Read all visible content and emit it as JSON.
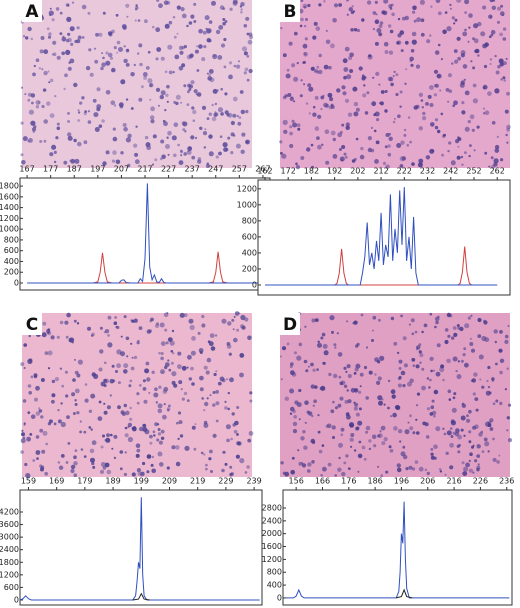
{
  "chart_data": [
    {
      "type": "line",
      "panel": "A",
      "xlim": [
        164,
        270
      ],
      "ylim": [
        -130,
        1950
      ],
      "xticks": [
        167,
        177,
        187,
        197,
        207,
        217,
        227,
        237,
        247,
        257,
        267
      ],
      "yticks": [
        0,
        200,
        400,
        600,
        800,
        1000,
        1200,
        1400,
        1600,
        1800
      ],
      "series": [
        {
          "color": "#d04040",
          "x": [
            195,
            197,
            198,
            199,
            200,
            201,
            203,
            244,
            246,
            247,
            248,
            249,
            250,
            252
          ],
          "values": [
            0,
            20,
            200,
            560,
            200,
            20,
            0,
            0,
            20,
            200,
            580,
            200,
            20,
            0
          ]
        },
        {
          "color": "#3050c0",
          "x": [
            167,
            206,
            207,
            208,
            209,
            211,
            214,
            215,
            216,
            217,
            218,
            219,
            220,
            221,
            222,
            223,
            224,
            225,
            226,
            267
          ],
          "values": [
            0,
            0,
            50,
            60,
            10,
            0,
            0,
            80,
            30,
            450,
            1850,
            300,
            60,
            150,
            20,
            10,
            80,
            10,
            0,
            0
          ]
        }
      ]
    },
    {
      "type": "line",
      "panel": "B",
      "xlim": [
        159,
        267.5
      ],
      "ylim": [
        -125,
        1310
      ],
      "xticks": [
        162,
        172,
        182,
        192,
        202,
        212,
        222,
        232,
        242,
        252,
        262
      ],
      "yticks": [
        0,
        200,
        400,
        600,
        800,
        1000,
        1200
      ],
      "series": [
        {
          "color": "#d04040",
          "x": [
            192,
            193,
            194,
            195,
            196,
            197,
            198,
            245,
            246,
            247,
            248,
            249,
            250,
            251
          ],
          "values": [
            0,
            20,
            150,
            450,
            150,
            20,
            0,
            0,
            20,
            160,
            480,
            160,
            20,
            0
          ]
        },
        {
          "color": "#3050c0",
          "x": [
            162,
            203,
            204,
            205,
            206,
            207,
            208,
            209,
            210,
            211,
            212,
            213,
            214,
            215,
            216,
            217,
            218,
            219,
            220,
            221,
            222,
            223,
            224,
            225,
            226,
            227,
            228,
            262
          ],
          "values": [
            0,
            0,
            150,
            350,
            780,
            250,
            400,
            200,
            550,
            300,
            900,
            250,
            500,
            350,
            1130,
            300,
            700,
            400,
            1180,
            500,
            1220,
            300,
            600,
            200,
            850,
            150,
            0,
            0
          ]
        }
      ]
    },
    {
      "type": "line",
      "panel": "C",
      "xlim": [
        156,
        241.8
      ],
      "ylim": [
        -240,
        5250
      ],
      "xticks": [
        159,
        169,
        179,
        189,
        199,
        209,
        219,
        229,
        239
      ],
      "yticks": [
        0,
        600,
        1200,
        1800,
        2400,
        3000,
        3600,
        4200
      ],
      "series": [
        {
          "color": "#3050c0",
          "x": [
            156,
            157,
            158,
            159,
            160,
            196,
            197,
            197.5,
            198,
            198.5,
            199,
            199.5,
            200,
            201,
            241
          ],
          "values": [
            0,
            50,
            200,
            60,
            0,
            0,
            200,
            900,
            1800,
            1500,
            4900,
            1200,
            200,
            0,
            0
          ]
        },
        {
          "color": "#222222",
          "x": [
            196,
            198,
            199,
            200,
            202
          ],
          "values": [
            0,
            40,
            300,
            40,
            0
          ]
        }
      ]
    },
    {
      "type": "line",
      "panel": "D",
      "xlim": [
        151,
        238
      ],
      "ylim": [
        -220,
        3360
      ],
      "xticks": [
        156,
        166,
        176,
        186,
        196,
        206,
        216,
        226,
        236
      ],
      "yticks": [
        0,
        400,
        800,
        1200,
        1600,
        2000,
        2400,
        2800
      ],
      "series": [
        {
          "color": "#3050c0",
          "x": [
            152,
            155,
            156,
            157,
            158,
            159,
            194,
            195,
            195.5,
            196,
            196.5,
            197,
            197.5,
            198,
            199,
            237
          ],
          "values": [
            0,
            0,
            60,
            250,
            60,
            0,
            0,
            200,
            800,
            2000,
            1700,
            3000,
            1200,
            300,
            0,
            0
          ]
        },
        {
          "color": "#222222",
          "x": [
            194,
            196,
            197,
            198,
            200
          ],
          "values": [
            0,
            40,
            250,
            40,
            0
          ]
        }
      ]
    }
  ]
}
